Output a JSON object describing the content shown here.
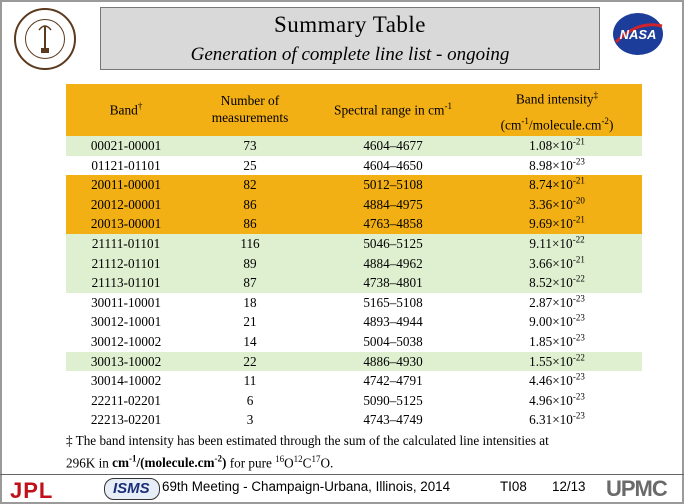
{
  "title": "Summary Table",
  "subtitle": "Generation of complete line list - ongoing",
  "table": {
    "headers": {
      "band": "Band",
      "band_mark": "†",
      "measurements_line1": "Number of",
      "measurements_line2": "measurements",
      "range": "Spectral range in cm",
      "range_sup": "-1",
      "intensity": "Band intensity",
      "intensity_mark": "‡",
      "intensity_units_a": "(cm",
      "intensity_units_a_sup": "-1",
      "intensity_units_b": "/molecule.cm",
      "intensity_units_b_sup": "-2",
      "intensity_units_c": ")"
    },
    "rows": [
      {
        "band": "00021-00001",
        "n": "73",
        "range": "4604–4677",
        "mant": "1.08×10",
        "exp": "-21",
        "color": "g"
      },
      {
        "band": "01121-01101",
        "n": "25",
        "range": "4604–4650",
        "mant": "8.98×10",
        "exp": "-23",
        "color": "w"
      },
      {
        "band": "20011-00001",
        "n": "82",
        "range": "5012–5108",
        "mant": "8.74×10",
        "exp": "-21",
        "color": "o"
      },
      {
        "band": "20012-00001",
        "n": "86",
        "range": "4884–4975",
        "mant": "3.36×10",
        "exp": "-20",
        "color": "o"
      },
      {
        "band": "20013-00001",
        "n": "86",
        "range": "4763–4858",
        "mant": "9.69×10",
        "exp": "-21",
        "color": "o"
      },
      {
        "band": "21111-01101",
        "n": "116",
        "range": "5046–5125",
        "mant": "9.11×10",
        "exp": "-22",
        "color": "g"
      },
      {
        "band": "21112-01101",
        "n": "89",
        "range": "4884–4962",
        "mant": "3.66×10",
        "exp": "-21",
        "color": "g"
      },
      {
        "band": "21113-01101",
        "n": "87",
        "range": "4738–4801",
        "mant": "8.52×10",
        "exp": "-22",
        "color": "g"
      },
      {
        "band": "30011-10001",
        "n": "18",
        "range": "5165–5108",
        "mant": "2.87×10",
        "exp": "-23",
        "color": "w"
      },
      {
        "band": "30012-10001",
        "n": "21",
        "range": "4893–4944",
        "mant": "9.00×10",
        "exp": "-23",
        "color": "w"
      },
      {
        "band": "30012-10002",
        "n": "14",
        "range": "5004–5038",
        "mant": "1.85×10",
        "exp": "-23",
        "color": "w"
      },
      {
        "band": "30013-10002",
        "n": "22",
        "range": "4886–4930",
        "mant": "1.55×10",
        "exp": "-22",
        "color": "g"
      },
      {
        "band": "30014-10002",
        "n": "11",
        "range": "4742–4791",
        "mant": "4.46×10",
        "exp": "-23",
        "color": "w"
      },
      {
        "band": "22211-02201",
        "n": "6",
        "range": "5090–5125",
        "mant": "4.96×10",
        "exp": "-23",
        "color": "w"
      },
      {
        "band": "22213-02201",
        "n": "3",
        "range": "4743–4749",
        "mant": "6.31×10",
        "exp": "-23",
        "color": "w"
      }
    ]
  },
  "footnote": {
    "mark": "‡",
    "line1": " The band intensity has been estimated through the sum of the calculated line intensities at",
    "line2_a": "296K in ",
    "line2_units_a": "cm",
    "line2_units_a_sup": "-1",
    "line2_units_b": "/(molecule.cm",
    "line2_units_b_sup": "-2",
    "line2_units_c": ")",
    "line2_b": " for pure ",
    "iso1": "16",
    "el1": "O",
    "iso2": "12",
    "el2": "C",
    "iso3": "17",
    "el3": "O."
  },
  "footer": {
    "jpl": "JPL",
    "isms": "ISMS",
    "meeting": "69th Meeting - Champaign-Urbana, Illinois, 2014",
    "code": "TI08",
    "page": "12/13",
    "upmc": "UPMC"
  },
  "colors": {
    "orange": "#f3b014",
    "green": "#dff0d0",
    "header_band": "#d9d9d9"
  }
}
